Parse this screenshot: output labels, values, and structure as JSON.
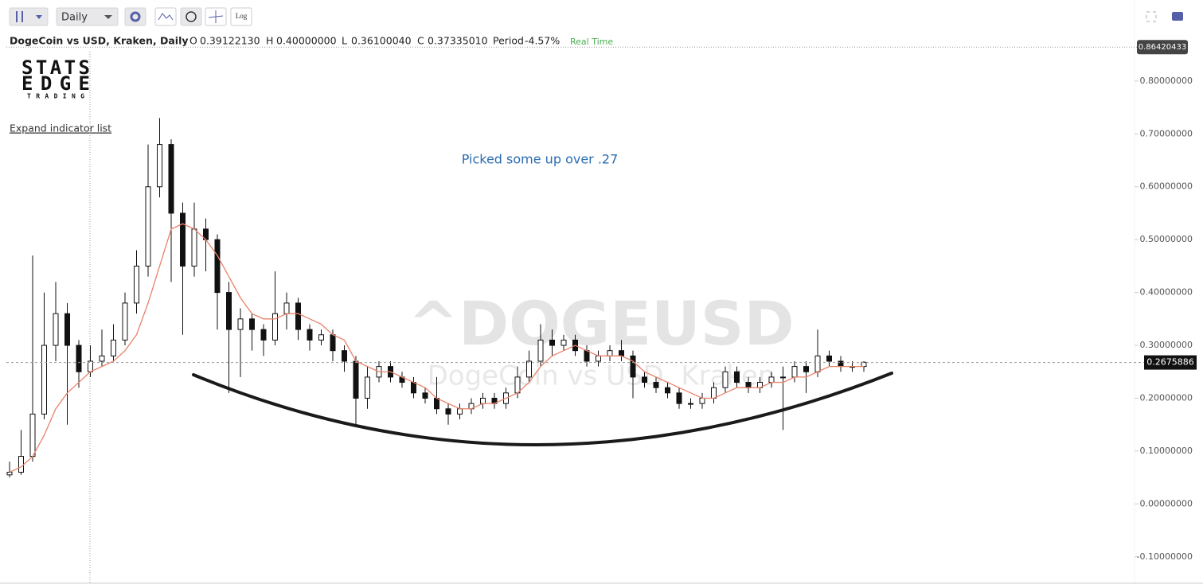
{
  "toolbar": {
    "interval": "Daily",
    "log": "Log"
  },
  "header": {
    "symbol": "DogeCoin vs USD, Kraken, Daily",
    "o_label": "O",
    "o": "0.39122130",
    "h_label": "H",
    "h": "0.40000000",
    "l_label": "L",
    "l": "0.36100040",
    "c_label": "C",
    "c": "0.37335010",
    "period_label": "Period",
    "period": "-4.57%",
    "status": "Real Time"
  },
  "logo": {
    "line1": "STATS",
    "line2": "EDGE",
    "line3": "TRADING"
  },
  "indicator_toggle": "Expand indicator list",
  "chart_data": {
    "type": "candlestick",
    "annotation": "Picked some up over .27",
    "watermark": "^DOGEUSD",
    "watermark_subtitle": "DogeCoin vs USD, Kraken",
    "ylim": [
      -0.15,
      0.86
    ],
    "yticks": [
      {
        "value": -0.1,
        "label": "-0.10000000"
      },
      {
        "value": 0,
        "label": "0.00000000"
      },
      {
        "value": 0.1,
        "label": "0.10000000"
      },
      {
        "value": 0.2,
        "label": "0.20000000"
      },
      {
        "value": 0.3,
        "label": "0.30000000"
      },
      {
        "value": 0.4,
        "label": "0.40000000"
      },
      {
        "value": 0.5,
        "label": "0.50000000"
      },
      {
        "value": 0.6,
        "label": "0.60000000"
      },
      {
        "value": 0.7,
        "label": "0.70000000"
      },
      {
        "value": 0.8,
        "label": "0.80000000"
      }
    ],
    "last_price": 0.2675886,
    "top_price": 0.86420433,
    "up_color": "#ffffff",
    "down_color": "#111111",
    "ma_color": "#e8826a",
    "open": [
      0.055,
      0.06,
      0.09,
      0.17,
      0.3,
      0.36,
      0.3,
      0.25,
      0.27,
      0.28,
      0.31,
      0.38,
      0.45,
      0.6,
      0.68,
      0.55,
      0.45,
      0.52,
      0.5,
      0.4,
      0.33,
      0.35,
      0.33,
      0.31,
      0.36,
      0.38,
      0.33,
      0.31,
      0.32,
      0.29,
      0.27,
      0.2,
      0.24,
      0.26,
      0.24,
      0.23,
      0.21,
      0.2,
      0.18,
      0.17,
      0.18,
      0.19,
      0.2,
      0.19,
      0.21,
      0.24,
      0.27,
      0.31,
      0.3,
      0.31,
      0.29,
      0.27,
      0.28,
      0.29,
      0.28,
      0.24,
      0.23,
      0.22,
      0.21,
      0.19,
      0.19,
      0.2,
      0.22,
      0.25,
      0.23,
      0.22,
      0.23,
      0.24,
      0.24,
      0.26,
      0.25,
      0.28,
      0.27,
      0.26,
      0.26
    ],
    "high": [
      0.08,
      0.14,
      0.47,
      0.4,
      0.42,
      0.38,
      0.31,
      0.3,
      0.33,
      0.34,
      0.4,
      0.48,
      0.68,
      0.73,
      0.69,
      0.57,
      0.57,
      0.54,
      0.51,
      0.42,
      0.37,
      0.36,
      0.34,
      0.44,
      0.4,
      0.39,
      0.34,
      0.33,
      0.33,
      0.3,
      0.28,
      0.26,
      0.27,
      0.27,
      0.25,
      0.24,
      0.22,
      0.24,
      0.19,
      0.19,
      0.2,
      0.21,
      0.21,
      0.22,
      0.26,
      0.29,
      0.34,
      0.33,
      0.32,
      0.32,
      0.3,
      0.29,
      0.3,
      0.31,
      0.29,
      0.25,
      0.24,
      0.23,
      0.22,
      0.2,
      0.21,
      0.23,
      0.26,
      0.26,
      0.24,
      0.24,
      0.25,
      0.26,
      0.27,
      0.27,
      0.33,
      0.29,
      0.28,
      0.27,
      0.27
    ],
    "low": [
      0.05,
      0.055,
      0.08,
      0.16,
      0.27,
      0.15,
      0.22,
      0.24,
      0.26,
      0.27,
      0.3,
      0.36,
      0.43,
      0.58,
      0.42,
      0.32,
      0.43,
      0.44,
      0.33,
      0.21,
      0.24,
      0.29,
      0.28,
      0.3,
      0.33,
      0.31,
      0.29,
      0.3,
      0.27,
      0.25,
      0.15,
      0.18,
      0.23,
      0.23,
      0.22,
      0.2,
      0.19,
      0.17,
      0.15,
      0.16,
      0.17,
      0.18,
      0.18,
      0.18,
      0.2,
      0.23,
      0.26,
      0.28,
      0.29,
      0.28,
      0.26,
      0.26,
      0.27,
      0.27,
      0.2,
      0.22,
      0.21,
      0.2,
      0.18,
      0.18,
      0.18,
      0.19,
      0.21,
      0.22,
      0.21,
      0.21,
      0.22,
      0.14,
      0.23,
      0.21,
      0.24,
      0.26,
      0.25,
      0.25,
      0.25
    ],
    "close": [
      0.06,
      0.09,
      0.17,
      0.3,
      0.36,
      0.3,
      0.25,
      0.27,
      0.28,
      0.31,
      0.38,
      0.45,
      0.6,
      0.68,
      0.55,
      0.45,
      0.52,
      0.5,
      0.4,
      0.33,
      0.35,
      0.33,
      0.31,
      0.36,
      0.38,
      0.33,
      0.31,
      0.32,
      0.29,
      0.27,
      0.2,
      0.24,
      0.26,
      0.24,
      0.23,
      0.21,
      0.2,
      0.18,
      0.17,
      0.18,
      0.19,
      0.2,
      0.19,
      0.21,
      0.24,
      0.27,
      0.31,
      0.3,
      0.31,
      0.29,
      0.27,
      0.28,
      0.29,
      0.28,
      0.24,
      0.23,
      0.22,
      0.21,
      0.19,
      0.19,
      0.2,
      0.22,
      0.25,
      0.23,
      0.22,
      0.23,
      0.24,
      0.24,
      0.26,
      0.25,
      0.28,
      0.27,
      0.26,
      0.26,
      0.268
    ],
    "ma": [
      0.06,
      0.07,
      0.09,
      0.13,
      0.18,
      0.21,
      0.23,
      0.25,
      0.26,
      0.27,
      0.29,
      0.32,
      0.38,
      0.45,
      0.52,
      0.53,
      0.52,
      0.5,
      0.47,
      0.43,
      0.39,
      0.36,
      0.35,
      0.35,
      0.36,
      0.36,
      0.35,
      0.34,
      0.32,
      0.31,
      0.27,
      0.26,
      0.25,
      0.25,
      0.24,
      0.23,
      0.22,
      0.2,
      0.19,
      0.18,
      0.18,
      0.19,
      0.19,
      0.2,
      0.21,
      0.23,
      0.26,
      0.28,
      0.29,
      0.3,
      0.29,
      0.28,
      0.28,
      0.28,
      0.27,
      0.25,
      0.24,
      0.23,
      0.22,
      0.21,
      0.2,
      0.2,
      0.21,
      0.22,
      0.22,
      0.22,
      0.23,
      0.23,
      0.24,
      0.24,
      0.25,
      0.26,
      0.26,
      0.26,
      0.26
    ]
  }
}
